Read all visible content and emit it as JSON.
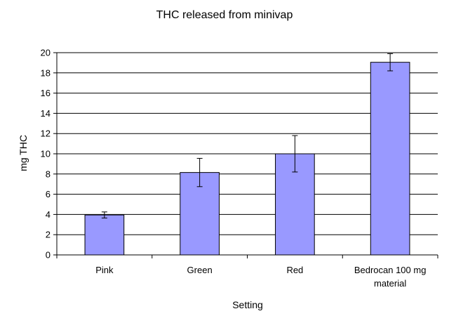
{
  "chart_data": {
    "type": "bar",
    "title": "THC released from minivap",
    "xlabel": "Setting",
    "ylabel": "mg THC",
    "categories": [
      [
        "Pink"
      ],
      [
        "Green"
      ],
      [
        "Red"
      ],
      [
        "Bedrocan 100 mg",
        "material"
      ]
    ],
    "values": [
      3.95,
      8.15,
      10.0,
      19.05
    ],
    "errors": [
      0.3,
      1.4,
      1.8,
      0.85
    ],
    "ylim": [
      0,
      20
    ],
    "yticks": [
      0,
      2,
      4,
      6,
      8,
      10,
      12,
      14,
      16,
      18,
      20
    ],
    "grid": true,
    "legend": "none",
    "colors": {
      "bar": "#9999ff",
      "gridline": "#000000"
    }
  }
}
